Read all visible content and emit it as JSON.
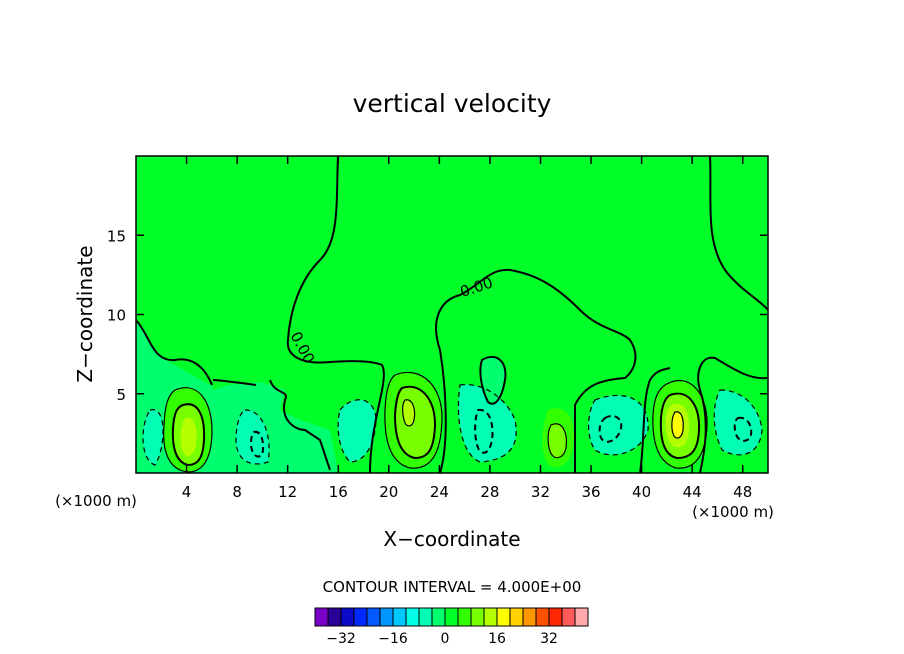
{
  "chart_data": {
    "type": "heatmap",
    "title": "vertical velocity",
    "xlabel": "X−coordinate",
    "ylabel": "Z−coordinate",
    "x_unit_label": "(×1000 m)",
    "x_ticks": [
      4,
      8,
      12,
      16,
      20,
      24,
      28,
      32,
      36,
      40,
      44,
      48
    ],
    "x_tick_labels": [
      "4",
      "8",
      "12",
      "16",
      "20",
      "24",
      "28",
      "32",
      "36",
      "40",
      "44",
      "48"
    ],
    "y_ticks": [
      5,
      10,
      15
    ],
    "y_tick_labels": [
      "5",
      "10",
      "15"
    ],
    "xlim": [
      0,
      50
    ],
    "ylim": [
      0,
      20
    ],
    "contour_interval_text": "CONTOUR INTERVAL = 4.000E+00",
    "contour_label": "0.00",
    "background_level": 0,
    "features": [
      {
        "kind": "updraft",
        "x": 3.9,
        "z": 2.7,
        "peak_level": 12
      },
      {
        "kind": "updraft",
        "x": 21.8,
        "z": 3.5,
        "peak_level": 12
      },
      {
        "kind": "updraft",
        "x": 42.7,
        "z": 3.2,
        "peak_level": 16
      },
      {
        "kind": "updraft",
        "x": 33.3,
        "z": 2.0,
        "peak_level": 4
      },
      {
        "kind": "downdraft",
        "x": 9.7,
        "z": 1.6,
        "peak_level": -8
      },
      {
        "kind": "downdraft",
        "x": 27.5,
        "z": 2.4,
        "peak_level": -8
      },
      {
        "kind": "downdraft",
        "x": 37.8,
        "z": 2.6,
        "peak_level": -8
      },
      {
        "kind": "downdraft",
        "x": 47.0,
        "z": 2.8,
        "peak_level": -8
      }
    ],
    "colorbar": {
      "levels": [
        -36,
        -32,
        -28,
        -24,
        -20,
        -16,
        -12,
        -8,
        -4,
        0,
        4,
        8,
        12,
        16,
        20,
        24,
        28,
        32,
        36
      ],
      "colors": [
        "#7a00c8",
        "#2b0096",
        "#0a0ac8",
        "#0028ff",
        "#005aff",
        "#0096ff",
        "#00c8ff",
        "#00ffe6",
        "#00ffb4",
        "#00ff6e",
        "#00ff28",
        "#32ff00",
        "#78ff00",
        "#b4ff00",
        "#ffff00",
        "#ffd200",
        "#ff9600",
        "#ff5000",
        "#ff2800",
        "#ff5a5a",
        "#ffaaaa"
      ],
      "tick_values": [
        -32,
        -16,
        0,
        16,
        32
      ],
      "tick_labels": [
        "−32",
        "−16",
        "0",
        "16",
        "32"
      ]
    }
  }
}
